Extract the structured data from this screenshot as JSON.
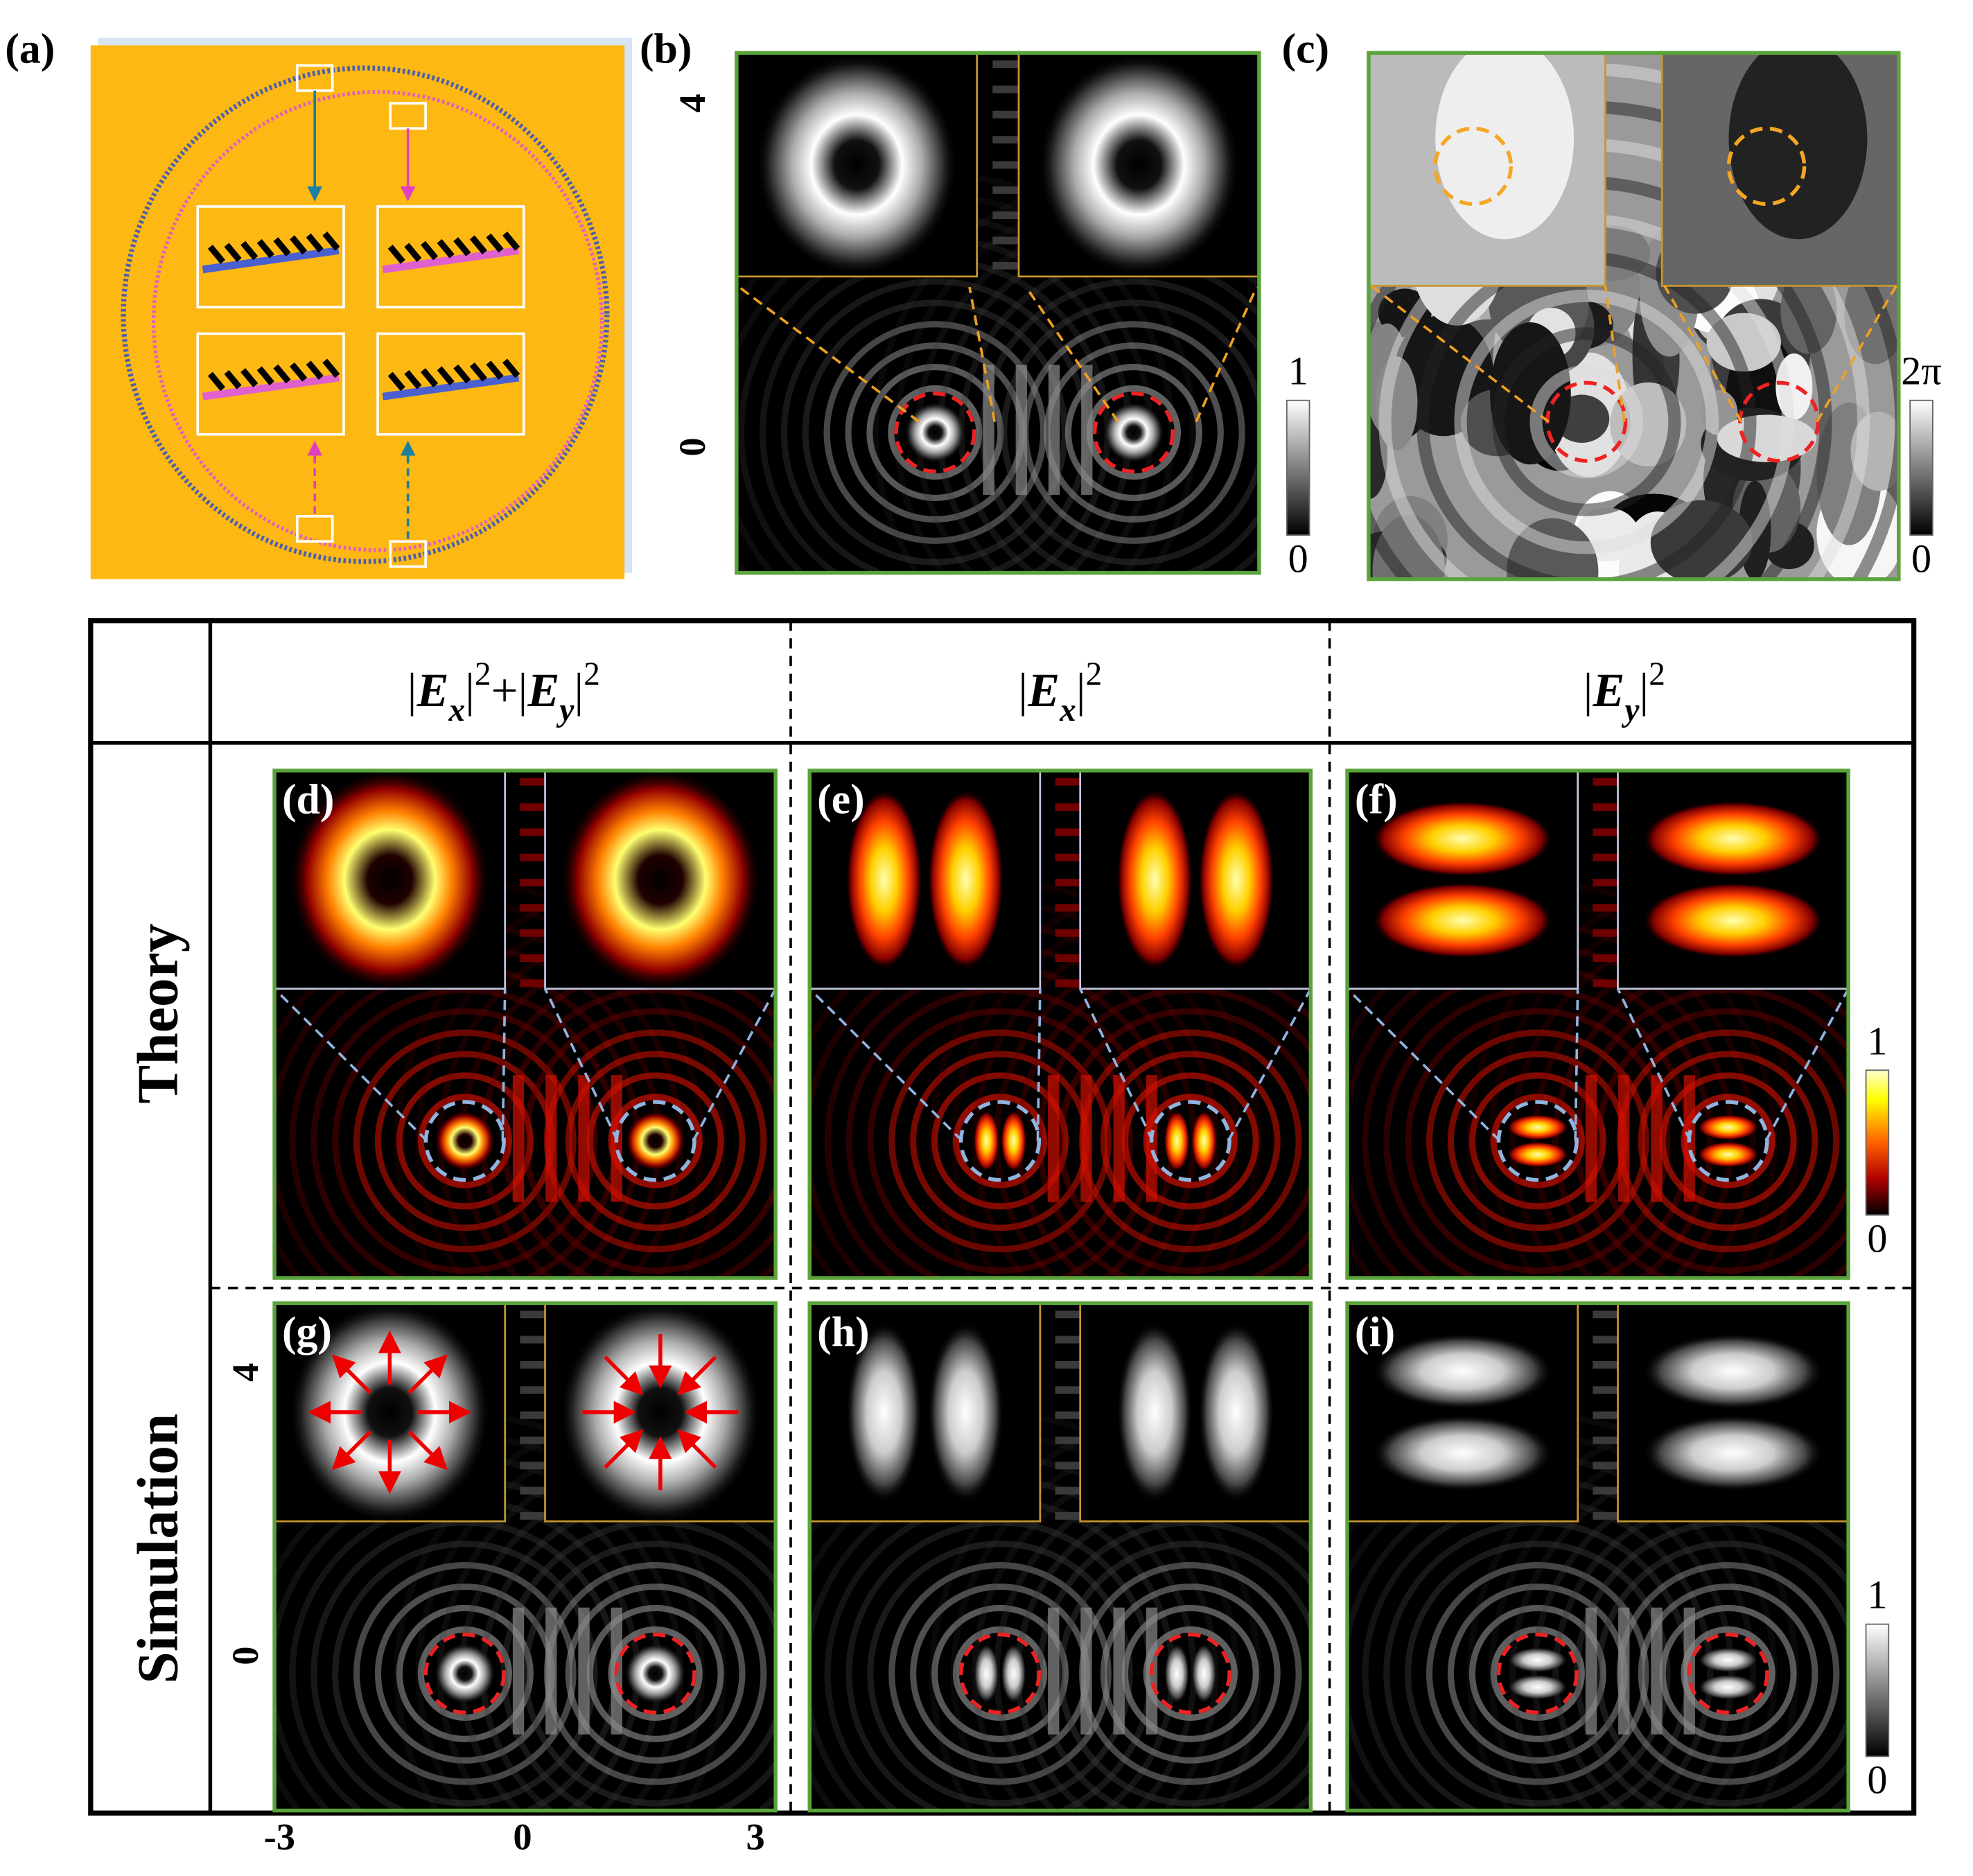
{
  "panels": [
    {
      "label": "(a)"
    },
    {
      "label": "(b)",
      "y_ticks": [
        "4",
        "0"
      ],
      "colorbar": [
        "1",
        "0"
      ]
    },
    {
      "label": "(c)",
      "colorbar": [
        "2π",
        "0"
      ]
    }
  ],
  "table": {
    "columns": [
      [
        {
          "text": "|"
        },
        {
          "text": "E",
          "style": "italic"
        },
        {
          "text": "x",
          "style": "sub"
        },
        {
          "text": "|"
        },
        {
          "text": "2",
          "style": "sup"
        },
        {
          "text": "+|"
        },
        {
          "text": "E",
          "style": "italic"
        },
        {
          "text": "y",
          "style": "sub"
        },
        {
          "text": "|"
        },
        {
          "text": "2",
          "style": "sup"
        }
      ],
      [
        {
          "text": "|"
        },
        {
          "text": "E",
          "style": "italic"
        },
        {
          "text": "x",
          "style": "sub"
        },
        {
          "text": "|"
        },
        {
          "text": "2",
          "style": "sup"
        }
      ],
      [
        {
          "text": "|"
        },
        {
          "text": "E",
          "style": "italic"
        },
        {
          "text": "y",
          "style": "sub"
        },
        {
          "text": "|"
        },
        {
          "text": "2",
          "style": "sup"
        }
      ]
    ],
    "rows": [
      {
        "label": "Theory",
        "panels": [
          "(d)",
          "(e)",
          "(f)"
        ],
        "colorbar": [
          "1",
          "0"
        ]
      },
      {
        "label": "Simulation",
        "panels": [
          "(g)",
          "(h)",
          "(i)"
        ],
        "colorbar": [
          "1",
          "0"
        ],
        "y_ticks": [
          "4",
          "0"
        ],
        "x_ticks": [
          "-3",
          "0",
          "3"
        ]
      }
    ]
  }
}
